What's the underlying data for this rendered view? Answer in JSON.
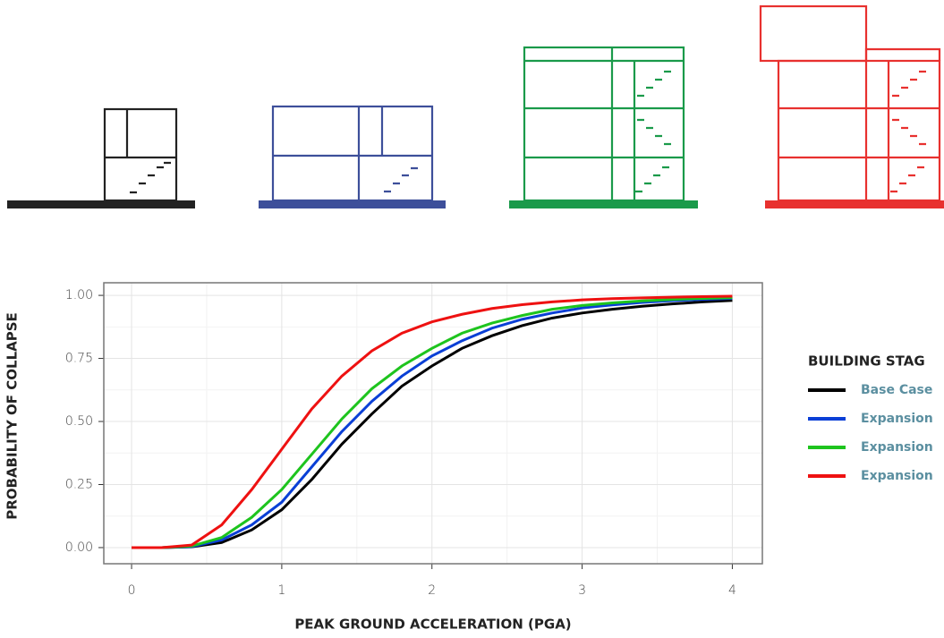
{
  "chart_data": {
    "type": "line",
    "x_label": "PEAK GROUND ACCELERATION (PGA)",
    "y_label": "PROBABILITY OF COLLAPSE",
    "legend_title": "BUILDING STAG",
    "legend": "right",
    "grid": true,
    "x": [
      0,
      0.2,
      0.4,
      0.6,
      0.8,
      1.0,
      1.2,
      1.4,
      1.6,
      1.8,
      2.0,
      2.2,
      2.4,
      2.6,
      2.8,
      3.0,
      3.2,
      3.4,
      3.6,
      3.8,
      4.0
    ],
    "series": [
      {
        "name": "Base Case",
        "color": "#000000",
        "values": [
          0,
          0,
          0.003,
          0.02,
          0.07,
          0.15,
          0.27,
          0.41,
          0.53,
          0.64,
          0.72,
          0.79,
          0.84,
          0.88,
          0.91,
          0.93,
          0.945,
          0.957,
          0.966,
          0.974,
          0.98
        ]
      },
      {
        "name": "Expansion",
        "color": "#0a3fd6",
        "values": [
          0,
          0,
          0.004,
          0.03,
          0.09,
          0.18,
          0.32,
          0.46,
          0.58,
          0.68,
          0.76,
          0.82,
          0.87,
          0.905,
          0.93,
          0.95,
          0.962,
          0.972,
          0.979,
          0.984,
          0.988
        ]
      },
      {
        "name": "Expansion",
        "color": "#1ec41e",
        "values": [
          0,
          0,
          0.006,
          0.04,
          0.12,
          0.23,
          0.37,
          0.51,
          0.63,
          0.72,
          0.79,
          0.85,
          0.89,
          0.92,
          0.945,
          0.96,
          0.97,
          0.978,
          0.984,
          0.988,
          0.991
        ]
      },
      {
        "name": "Expansion",
        "color": "#ee1111",
        "values": [
          0,
          0,
          0.01,
          0.09,
          0.23,
          0.39,
          0.55,
          0.68,
          0.78,
          0.85,
          0.895,
          0.925,
          0.948,
          0.963,
          0.974,
          0.982,
          0.987,
          0.99,
          0.993,
          0.995,
          0.997
        ]
      }
    ],
    "xlim": [
      -0.185,
      4.2
    ],
    "ylim": [
      -0.064,
      1.05
    ],
    "xticks": [
      0,
      1,
      2,
      3,
      4
    ],
    "yticks": [
      {
        "value": 0,
        "label": "0.00"
      },
      {
        "value": 0.25,
        "label": "0.25"
      },
      {
        "value": 0.5,
        "label": "0.50"
      },
      {
        "value": 0.75,
        "label": "0.75"
      },
      {
        "value": 1,
        "label": "1.00"
      }
    ]
  }
}
